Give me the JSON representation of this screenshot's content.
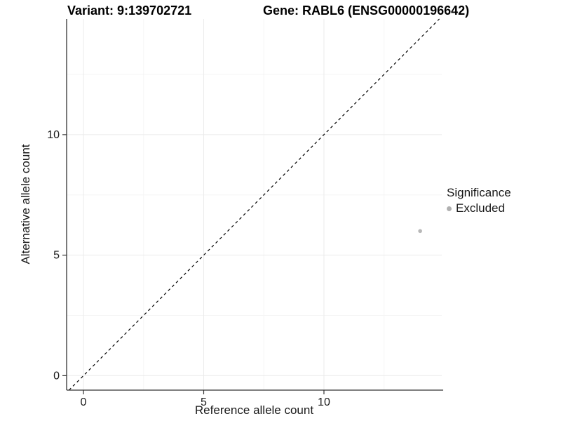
{
  "chart_data": {
    "type": "scatter",
    "titles": {
      "variant": "Variant: 9:139702721",
      "gene": "Gene: RABL6 (ENSG00000196642)"
    },
    "xlabel": "Reference allele count",
    "ylabel": "Alternative allele count",
    "xlim": [
      -0.7,
      14.9
    ],
    "ylim": [
      -0.6,
      14.8
    ],
    "x_ticks": [
      0,
      5,
      10
    ],
    "y_ticks": [
      0,
      5,
      10
    ],
    "x_minor_ticks": [
      2.5,
      7.5,
      12.5
    ],
    "y_minor_ticks": [
      2.5,
      7.5,
      12.5
    ],
    "axis_color": "#333333",
    "grid": {
      "on": true,
      "major_color": "#ebebeb",
      "minor_color": "#f5f5f5"
    },
    "identity_line": {
      "slope": 1,
      "intercept": 0,
      "style": "dashed",
      "color": "#000000"
    },
    "series": [
      {
        "name": "Excluded",
        "color": "#b8b8b8",
        "point_radius": 2.8,
        "points": [
          {
            "x": 14,
            "y": 6
          }
        ]
      }
    ],
    "legend": {
      "title": "Significance",
      "position": "right",
      "items": [
        {
          "label": "Excluded",
          "color": "#b0b0b0"
        }
      ]
    }
  }
}
